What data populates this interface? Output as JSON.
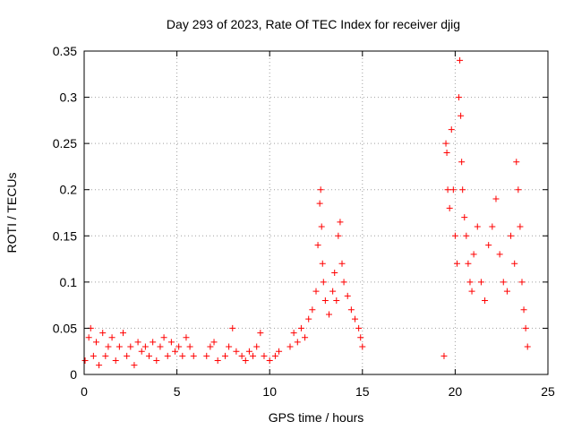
{
  "chart_data": {
    "type": "scatter",
    "title": "Day 293 of 2023, Rate Of TEC Index for receiver djig",
    "xlabel": "GPS time / hours",
    "ylabel": "ROTI / TECUs",
    "xlim": [
      0,
      25
    ],
    "ylim": [
      0,
      0.35
    ],
    "x_ticks": [
      "0",
      "5",
      "10",
      "15",
      "20",
      "25"
    ],
    "y_ticks": [
      "0",
      "0.05",
      "0.1",
      "0.15",
      "0.2",
      "0.25",
      "0.3",
      "0.35"
    ],
    "grid": true,
    "marker": "+",
    "marker_color": "#ff0000",
    "series": [
      {
        "name": "ROTI",
        "x": [
          0.05,
          0.25,
          0.35,
          0.5,
          0.65,
          0.8,
          1.0,
          1.15,
          1.3,
          1.5,
          1.7,
          1.9,
          2.1,
          2.3,
          2.5,
          2.7,
          2.9,
          3.1,
          3.3,
          3.5,
          3.7,
          3.9,
          4.1,
          4.3,
          4.5,
          4.7,
          4.9,
          5.1,
          5.3,
          5.5,
          5.7,
          5.9,
          6.6,
          6.8,
          7.0,
          7.2,
          7.6,
          7.8,
          8.0,
          8.2,
          8.5,
          8.7,
          8.9,
          9.1,
          9.3,
          9.5,
          9.7,
          10.0,
          10.3,
          10.5,
          11.1,
          11.3,
          11.5,
          11.7,
          11.9,
          12.1,
          12.3,
          12.5,
          12.6,
          12.7,
          12.75,
          12.8,
          12.85,
          12.9,
          13.0,
          13.2,
          13.4,
          13.5,
          13.6,
          13.7,
          13.8,
          13.9,
          14.0,
          14.2,
          14.4,
          14.6,
          14.8,
          14.9,
          15.0,
          19.4,
          19.5,
          19.55,
          19.6,
          19.7,
          19.8,
          19.9,
          20.0,
          20.1,
          20.2,
          20.25,
          20.3,
          20.35,
          20.4,
          20.5,
          20.6,
          20.7,
          20.8,
          20.9,
          21.0,
          21.2,
          21.4,
          21.6,
          21.8,
          22.0,
          22.2,
          22.4,
          22.6,
          22.8,
          23.0,
          23.2,
          23.3,
          23.4,
          23.5,
          23.6,
          23.7,
          23.8,
          23.9
        ],
        "y": [
          0.015,
          0.04,
          0.05,
          0.02,
          0.035,
          0.01,
          0.045,
          0.02,
          0.03,
          0.04,
          0.015,
          0.03,
          0.045,
          0.02,
          0.03,
          0.01,
          0.035,
          0.025,
          0.03,
          0.02,
          0.035,
          0.015,
          0.03,
          0.04,
          0.02,
          0.035,
          0.025,
          0.03,
          0.02,
          0.04,
          0.03,
          0.02,
          0.02,
          0.03,
          0.035,
          0.015,
          0.02,
          0.03,
          0.05,
          0.025,
          0.02,
          0.015,
          0.025,
          0.02,
          0.03,
          0.045,
          0.02,
          0.015,
          0.02,
          0.025,
          0.03,
          0.045,
          0.035,
          0.05,
          0.04,
          0.06,
          0.07,
          0.09,
          0.14,
          0.185,
          0.2,
          0.16,
          0.12,
          0.1,
          0.08,
          0.065,
          0.09,
          0.11,
          0.08,
          0.15,
          0.165,
          0.12,
          0.1,
          0.085,
          0.07,
          0.06,
          0.05,
          0.04,
          0.03,
          0.02,
          0.25,
          0.24,
          0.2,
          0.18,
          0.265,
          0.2,
          0.15,
          0.12,
          0.3,
          0.34,
          0.28,
          0.23,
          0.2,
          0.17,
          0.15,
          0.12,
          0.1,
          0.09,
          0.13,
          0.16,
          0.1,
          0.08,
          0.14,
          0.16,
          0.19,
          0.13,
          0.1,
          0.09,
          0.15,
          0.12,
          0.23,
          0.2,
          0.16,
          0.1,
          0.07,
          0.05,
          0.03
        ]
      }
    ]
  }
}
